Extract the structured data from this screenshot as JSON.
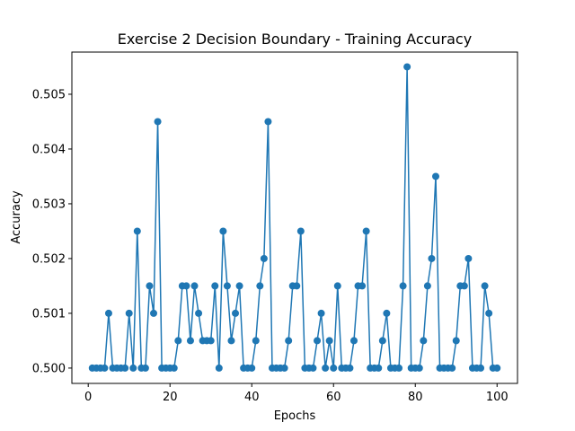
{
  "chart_data": {
    "type": "line",
    "title": "Exercise 2 Decision Boundary - Training Accuracy",
    "xlabel": "Epochs",
    "ylabel": "Accuracy",
    "xlim": [
      -4,
      105
    ],
    "ylim": [
      0.49972,
      0.50577
    ],
    "xticks": [
      0,
      20,
      40,
      60,
      80,
      100
    ],
    "yticks": [
      0.5,
      0.501,
      0.502,
      0.503,
      0.504,
      0.505
    ],
    "ytick_labels": [
      "0.500",
      "0.501",
      "0.502",
      "0.503",
      "0.504",
      "0.505"
    ],
    "grid": false,
    "markers": true,
    "series": [
      {
        "color": "#1f77b4",
        "x": [
          1,
          2,
          3,
          4,
          5,
          6,
          7,
          8,
          9,
          10,
          11,
          12,
          13,
          14,
          15,
          16,
          17,
          18,
          19,
          20,
          21,
          22,
          23,
          24,
          25,
          26,
          27,
          28,
          29,
          30,
          31,
          32,
          33,
          34,
          35,
          36,
          37,
          38,
          39,
          40,
          41,
          42,
          43,
          44,
          45,
          46,
          47,
          48,
          49,
          50,
          51,
          52,
          53,
          54,
          55,
          56,
          57,
          58,
          59,
          60,
          61,
          62,
          63,
          64,
          65,
          66,
          67,
          68,
          69,
          70,
          71,
          72,
          73,
          74,
          75,
          76,
          77,
          78,
          79,
          80,
          81,
          82,
          83,
          84,
          85,
          86,
          87,
          88,
          89,
          90,
          91,
          92,
          93,
          94,
          95,
          96,
          97,
          98,
          99,
          100
        ],
        "values": [
          0.5,
          0.5,
          0.5,
          0.5,
          0.501,
          0.5,
          0.5,
          0.5,
          0.5,
          0.501,
          0.5,
          0.5025,
          0.5,
          0.5,
          0.5015,
          0.501,
          0.5045,
          0.5,
          0.5,
          0.5,
          0.5,
          0.5005,
          0.5015,
          0.5015,
          0.5005,
          0.5015,
          0.501,
          0.5005,
          0.5005,
          0.5005,
          0.5015,
          0.5,
          0.5025,
          0.5015,
          0.5005,
          0.501,
          0.5015,
          0.5,
          0.5,
          0.5,
          0.5005,
          0.5015,
          0.502,
          0.5045,
          0.5,
          0.5,
          0.5,
          0.5,
          0.5005,
          0.5015,
          0.5015,
          0.5025,
          0.5,
          0.5,
          0.5,
          0.5005,
          0.501,
          0.5,
          0.5005,
          0.5,
          0.5015,
          0.5,
          0.5,
          0.5,
          0.5005,
          0.5015,
          0.5015,
          0.5025,
          0.5,
          0.5,
          0.5,
          0.5005,
          0.501,
          0.5,
          0.5,
          0.5,
          0.5015,
          0.5055,
          0.5,
          0.5,
          0.5,
          0.5005,
          0.5015,
          0.502,
          0.5035,
          0.5,
          0.5,
          0.5,
          0.5,
          0.5005,
          0.5015,
          0.5015,
          0.502,
          0.5,
          0.5,
          0.5,
          0.5015,
          0.501,
          0.5,
          0.5
        ]
      }
    ]
  }
}
